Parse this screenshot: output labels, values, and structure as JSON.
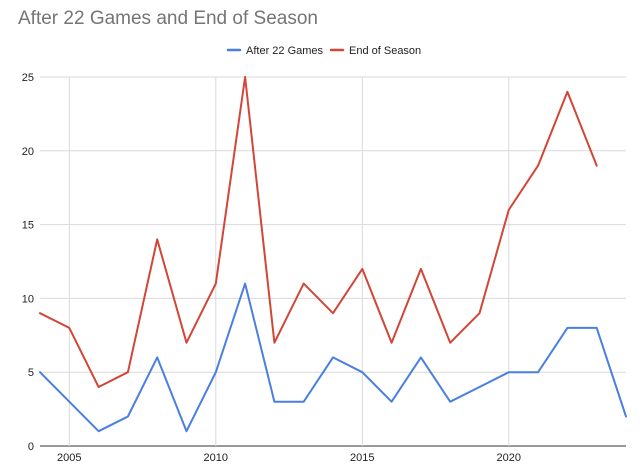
{
  "chart_data": {
    "type": "line",
    "title": "After 22 Games and End of Season",
    "xlabel": "",
    "ylabel": "",
    "xlim": [
      2004,
      2024
    ],
    "ylim": [
      0,
      25
    ],
    "x_ticks": [
      "2005",
      "2010",
      "2015",
      "2020"
    ],
    "y_ticks": [
      "0",
      "5",
      "10",
      "15",
      "20",
      "25"
    ],
    "grid": true,
    "legend_position": "top-center",
    "x": [
      2004,
      2005,
      2006,
      2007,
      2008,
      2009,
      2010,
      2011,
      2012,
      2013,
      2014,
      2015,
      2016,
      2017,
      2018,
      2019,
      2020,
      2021,
      2022,
      2023,
      2024
    ],
    "series": [
      {
        "name": "After 22 Games",
        "color": "#4a7fe0",
        "values": [
          5,
          3,
          1,
          2,
          6,
          1,
          5,
          11,
          3,
          3,
          6,
          5,
          3,
          6,
          3,
          4,
          5,
          5,
          8,
          8,
          2
        ]
      },
      {
        "name": "End of Season",
        "color": "#d24638",
        "values": [
          9,
          8,
          4,
          5,
          14,
          7,
          11,
          25,
          7,
          11,
          9,
          12,
          7,
          12,
          7,
          9,
          16,
          19,
          24,
          19,
          null
        ]
      }
    ]
  }
}
